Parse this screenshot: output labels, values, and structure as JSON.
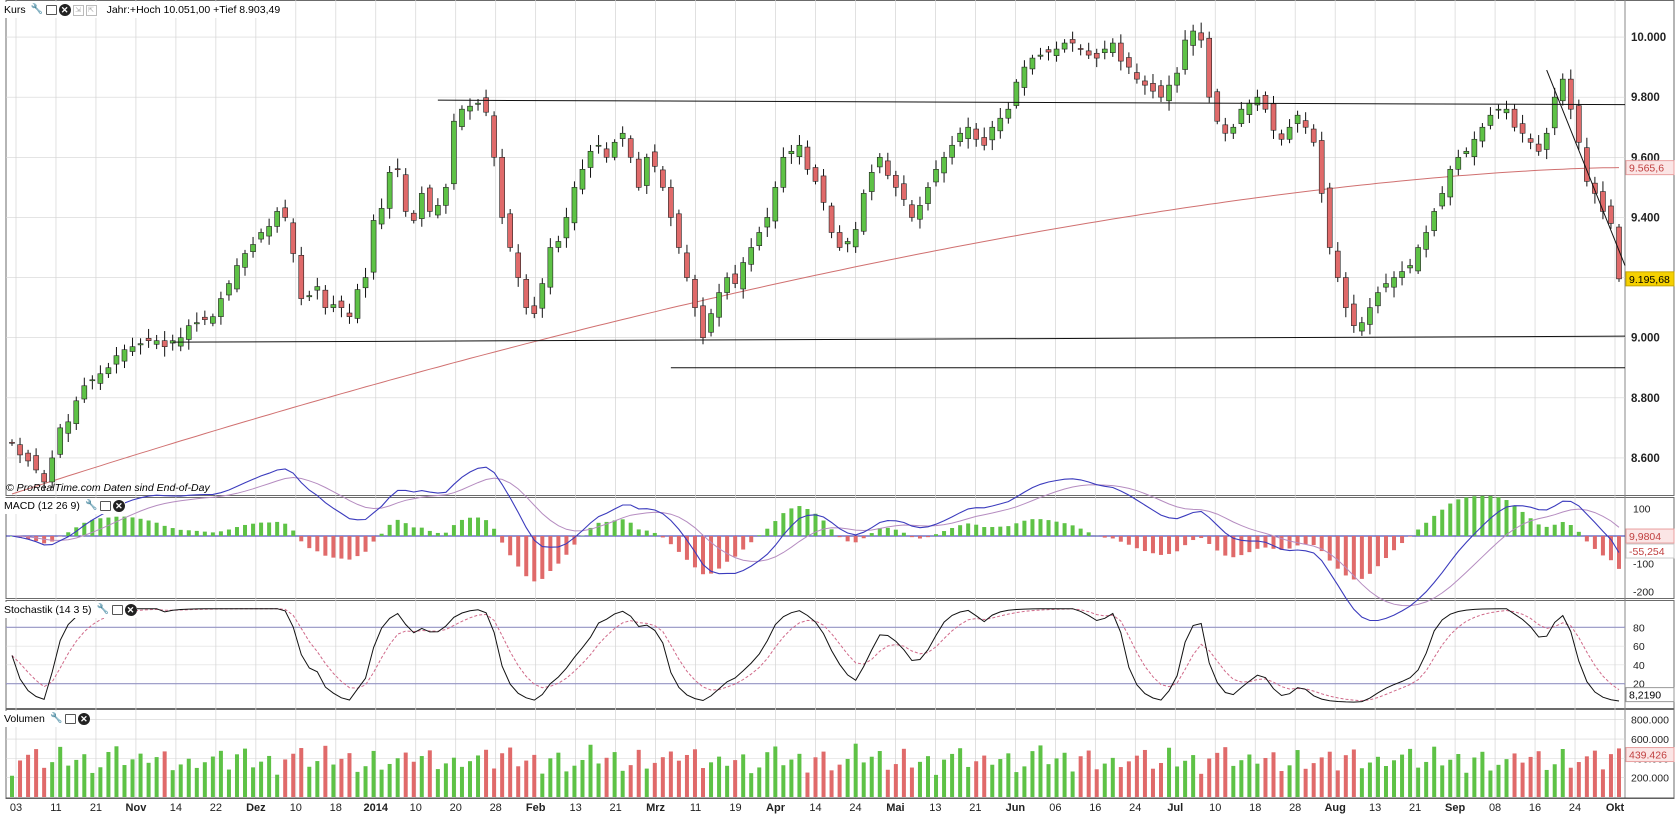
{
  "panels": {
    "price": {
      "title": "Kurs",
      "info": "Jahr:+Hoch 10.051,00 +Tief 8.903,49",
      "source": "© ProRealTime.com  Daten sind End-of-Day"
    },
    "macd": {
      "title": "MACD (12 26 9)"
    },
    "stoch": {
      "title": "Stochastik (14 3 5)"
    },
    "volume": {
      "title": "Volumen"
    }
  },
  "icons": [
    "wrench-icon",
    "window-icon",
    "close-icon",
    "arrow-icon",
    "arrow-icon"
  ],
  "colors": {
    "up": "#5ec246",
    "down": "#e06a6a",
    "sma": "#d07070",
    "grid": "#d4d4d4",
    "panel_border": "#6b6b6b",
    "last_price_bg": "#f5d000",
    "blue_line": "#2a2aa8"
  },
  "chart_data": [
    {
      "type": "candlestick",
      "title": "Kurs",
      "ylim": [
        8480,
        10070
      ],
      "y_ticks": [
        "10.000",
        "9.800",
        "9.600",
        "9.400",
        "9.200",
        "9.000",
        "8.800",
        "8.600"
      ],
      "y_tick_values": [
        10000,
        9800,
        9600,
        9400,
        9200,
        9000,
        8800,
        8600
      ],
      "markers": [
        {
          "label": "9.565,6",
          "value": 9565.6
        },
        {
          "label": "9.195,68",
          "value": 9195.68
        }
      ],
      "x_labels": [
        "03",
        "11",
        "21",
        "Nov",
        "14",
        "22",
        "Dez",
        "10",
        "18",
        "2014",
        "10",
        "20",
        "28",
        "Feb",
        "13",
        "21",
        "Mrz",
        "11",
        "19",
        "Apr",
        "14",
        "24",
        "Mai",
        "13",
        "21",
        "Jun",
        "06",
        "16",
        "24",
        "Jul",
        "10",
        "18",
        "28",
        "Aug",
        "13",
        "21",
        "Sep",
        "08",
        "16",
        "24",
        "Okt"
      ],
      "x_label_bold": [
        "Nov",
        "Dez",
        "2014",
        "Feb",
        "Mrz",
        "Apr",
        "Mai",
        "Jun",
        "Jul",
        "Aug",
        "Sep",
        "Okt"
      ],
      "closes": [
        8650,
        8610,
        8590,
        8560,
        8520,
        8600,
        8700,
        8720,
        8790,
        8840,
        8860,
        8880,
        8900,
        8940,
        8960,
        8970,
        8980,
        8990,
        8990,
        8970,
        8990,
        9000,
        9040,
        9050,
        9060,
        9070,
        9130,
        9180,
        9240,
        9280,
        9310,
        9350,
        9370,
        9420,
        9400,
        9280,
        9130,
        9140,
        9170,
        9100,
        9110,
        9100,
        9070,
        9160,
        9200,
        9390,
        9430,
        9550,
        9560,
        9420,
        9390,
        9480,
        9420,
        9440,
        9500,
        9720,
        9760,
        9770,
        9780,
        9750,
        9600,
        9400,
        9300,
        9200,
        9100,
        9080,
        9180,
        9300,
        9320,
        9400,
        9500,
        9560,
        9620,
        9640,
        9600,
        9650,
        9680,
        9600,
        9500,
        9600,
        9570,
        9500,
        9400,
        9300,
        9200,
        9100,
        9000,
        9080,
        9150,
        9200,
        9180,
        9250,
        9300,
        9350,
        9400,
        9500,
        9600,
        9620,
        9640,
        9560,
        9520,
        9450,
        9350,
        9300,
        9320,
        9360,
        9480,
        9550,
        9600,
        9540,
        9500,
        9460,
        9400,
        9440,
        9500,
        9560,
        9600,
        9640,
        9680,
        9700,
        9660,
        9640,
        9700,
        9730,
        9760,
        9850,
        9900,
        9930,
        9940,
        9950,
        9960,
        9980,
        9980,
        9960,
        9940,
        9930,
        9960,
        9980,
        9920,
        9900,
        9860,
        9840,
        9820,
        9800,
        9840,
        9880,
        9990,
        10020,
        9990,
        9800,
        9720,
        9680,
        9700,
        9760,
        9780,
        9800,
        9760,
        9690,
        9660,
        9700,
        9740,
        9700,
        9650,
        9480,
        9300,
        9200,
        9100,
        9040,
        9050,
        9100,
        9150,
        9180,
        9200,
        9220,
        9240,
        9300,
        9350,
        9420,
        9480,
        9560,
        9600,
        9620,
        9660,
        9700,
        9740,
        9760,
        9760,
        9700,
        9680,
        9650,
        9620,
        9680,
        9800,
        9860,
        9760,
        9650,
        9520,
        9480,
        9420,
        9380,
        9195.68
      ],
      "sma_200": {
        "start": 8480,
        "end": 9565.6
      },
      "lines": [
        {
          "label": "resistance",
          "from_date_idx": 53,
          "to_date_idx": 208,
          "from": 9790,
          "to": 9775
        },
        {
          "label": "support",
          "from_date_idx": 20,
          "to_date_idx": 208,
          "from": 8985,
          "to": 9005
        },
        {
          "label": "support-2",
          "from_date_idx": 82,
          "to_date_idx": 208,
          "from": 8900,
          "to": 8900
        },
        {
          "label": "downtrend",
          "from_date_idx": 191,
          "to_date_idx": 208,
          "from": 9890,
          "to": 9240
        }
      ]
    },
    {
      "type": "macd",
      "title": "MACD (12 26 9)",
      "ylim": [
        -220,
        130
      ],
      "y_ticks": [
        "100",
        "-100",
        "-200"
      ],
      "y_tick_values": [
        100,
        -100,
        -200
      ],
      "markers": [
        {
          "label": "9,9804",
          "value": 9.98
        },
        {
          "label": "-55,254",
          "value": -55.254
        }
      ]
    },
    {
      "type": "stochastic",
      "title": "Stochastik (14 3 5)",
      "ylim": [
        -5,
        105
      ],
      "y_ticks": [
        "80",
        "60",
        "40",
        "20"
      ],
      "y_tick_values": [
        80,
        60,
        40,
        20
      ],
      "levels": [
        80,
        20
      ],
      "markers": [
        {
          "label": "8,2190",
          "value": 8.219
        }
      ]
    },
    {
      "type": "bar",
      "title": "Volumen",
      "ylim": [
        0,
        880000
      ],
      "y_ticks": [
        "800.000",
        "600.000",
        "400.000",
        "200.000"
      ],
      "y_tick_values": [
        800000,
        600000,
        400000,
        200000
      ],
      "markers": [
        {
          "label": "439.426",
          "value": 439426
        }
      ]
    }
  ]
}
